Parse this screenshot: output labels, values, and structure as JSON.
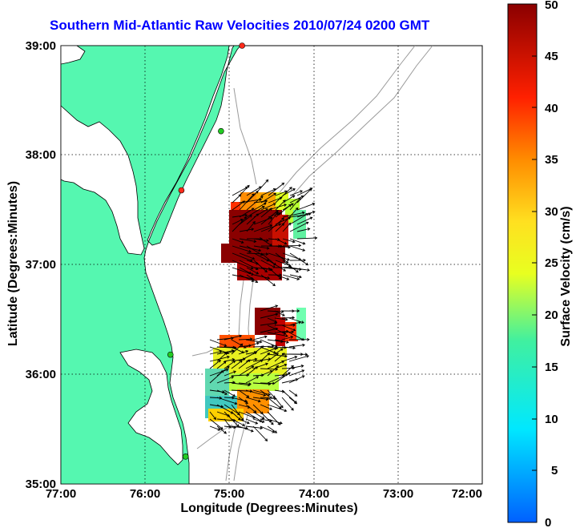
{
  "map": {
    "title": "Southern Mid-Atlantic Raw Velocities 2010/07/24 0200 GMT",
    "xlabel": "Longitude (Degrees:Minutes)",
    "ylabel": "Latitude (Degrees:Minutes)",
    "colorbar_label": "Surface Velocity (cm/s)",
    "land_color": "#55f7b0",
    "coast_color": "#000000",
    "bathymetry_color": "#9a9a9a",
    "grid": true,
    "x_ticks": [
      "77:00",
      "76:00",
      "75:00",
      "74:00",
      "73:00",
      "72:00"
    ],
    "y_ticks": [
      "39:00",
      "38:00",
      "37:00",
      "36:00",
      "35:00"
    ],
    "colorbar_ticks": [
      "50",
      "45",
      "40",
      "35",
      "30",
      "25",
      "20",
      "15",
      "10",
      "5",
      "0"
    ],
    "colorbar_range": [
      0,
      50
    ],
    "lon_range": [
      -77,
      -72
    ],
    "lat_range": [
      35,
      39
    ],
    "radar_sites": [
      {
        "lon": -74.85,
        "lat": 39.0,
        "color": "#ff2a1a"
      },
      {
        "lon": -75.1,
        "lat": 38.22,
        "color": "#22cc22"
      },
      {
        "lon": -75.57,
        "lat": 37.68,
        "color": "#ff2a1a"
      },
      {
        "lon": -75.7,
        "lat": 36.18,
        "color": "#22cc22"
      },
      {
        "lon": -75.52,
        "lat": 35.25,
        "color": "#22cc22"
      }
    ]
  }
}
